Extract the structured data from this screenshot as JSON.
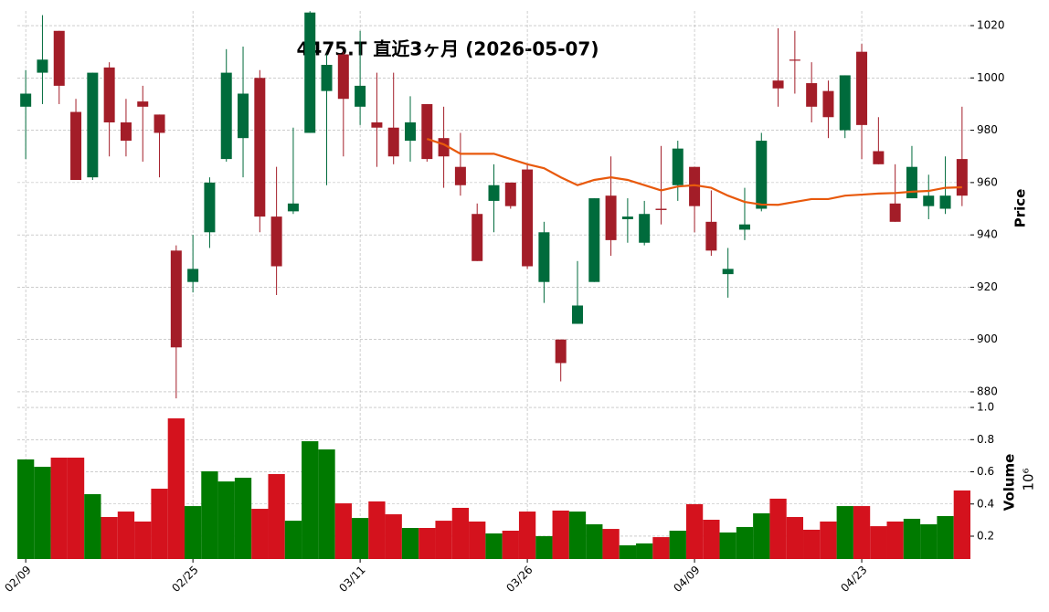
{
  "chart_data": {
    "type": "candlestick",
    "title": "4475.T  直近3ヶ月  (2026-05-07)",
    "ylabel": "Price",
    "categories": [
      "02/09",
      null,
      null,
      null,
      null,
      null,
      null,
      null,
      null,
      null,
      "02/25",
      null,
      null,
      null,
      null,
      null,
      null,
      null,
      null,
      null,
      "03/11",
      null,
      null,
      null,
      null,
      null,
      null,
      null,
      null,
      null,
      "03/26",
      null,
      null,
      null,
      null,
      null,
      null,
      null,
      null,
      null,
      "04/09",
      null,
      null,
      null,
      null,
      null,
      null,
      null,
      null,
      null,
      "04/23",
      null,
      null,
      null,
      null,
      null,
      null
    ],
    "open": [
      989,
      1002,
      1018,
      987,
      962,
      1004,
      983,
      991,
      986,
      934,
      922,
      941,
      969,
      977,
      1000,
      947,
      949,
      979,
      995,
      1009,
      989,
      983,
      981,
      976,
      990,
      977,
      966,
      948,
      953,
      960,
      965,
      922,
      900,
      906,
      922,
      955,
      946,
      937,
      950,
      959,
      966,
      945,
      925,
      942,
      950,
      999,
      1007,
      998,
      995,
      980,
      1010,
      972,
      952,
      954,
      951,
      950,
      969
    ],
    "high": [
      1003,
      1024,
      1018,
      992,
      1002,
      1006,
      992,
      997,
      986,
      936,
      940,
      962,
      1011,
      1012,
      1003,
      966,
      981,
      1025.5,
      1009,
      1010,
      1018,
      1002,
      1002,
      993,
      990,
      989,
      979,
      952,
      967,
      960,
      967,
      945,
      900,
      930,
      954,
      970,
      954,
      953,
      974,
      976,
      966,
      957,
      935,
      958,
      979,
      1019,
      1018,
      1006,
      999,
      1001,
      1013,
      985,
      967,
      974,
      963,
      970,
      989
    ],
    "low": [
      969,
      990,
      990,
      961,
      961,
      970,
      970,
      968,
      962,
      877.5,
      918,
      935,
      968,
      962,
      941,
      917,
      948,
      979,
      959,
      970,
      982,
      966,
      967,
      968,
      968,
      958,
      955,
      930,
      941,
      950,
      927,
      914,
      884,
      906,
      922,
      932,
      937,
      936,
      944,
      953,
      941,
      932,
      916,
      938,
      949,
      989,
      994,
      983,
      977,
      977,
      969,
      967,
      945,
      954,
      946,
      948,
      951
    ],
    "close": [
      994,
      1007,
      997,
      961,
      1002,
      983,
      976,
      989,
      979,
      897,
      927,
      960,
      1002,
      994,
      947,
      928,
      952,
      1025,
      1005,
      992,
      997,
      981,
      970,
      983,
      969,
      970,
      959,
      930,
      959,
      951,
      928,
      941,
      891,
      913,
      954,
      938,
      947,
      948,
      949.5,
      973,
      951,
      934,
      927,
      944,
      976,
      996,
      1006.8,
      989,
      985,
      1001,
      982,
      967,
      945,
      966,
      955,
      955,
      955
    ],
    "up_color": "#006b3c",
    "down_color": "#a31d28",
    "ylim": [
      877.2,
      1025.6
    ],
    "yticks": [
      880,
      900,
      920,
      940,
      960,
      980,
      1000,
      1020
    ],
    "grid": true,
    "moving_average": {
      "color": "#e8590c",
      "values": [
        null,
        null,
        null,
        null,
        null,
        null,
        null,
        null,
        null,
        null,
        null,
        null,
        null,
        null,
        null,
        null,
        null,
        null,
        null,
        null,
        null,
        null,
        null,
        null,
        976.7,
        974.6,
        971,
        971,
        971,
        969,
        967,
        965.5,
        962,
        959,
        961,
        962,
        961,
        959,
        957,
        958.5,
        959,
        958,
        955,
        952.6,
        951.6,
        951.5,
        952.6,
        953.7,
        953.7,
        955,
        955.4,
        955.8,
        956,
        956.5,
        956.8,
        958,
        958.2
      ]
    },
    "volume": {
      "ylabel": "Volume",
      "exponent": "10⁶",
      "up_color": "#007a00",
      "down_color": "#d4121d",
      "values": [
        0.677,
        0.631,
        0.688,
        0.688,
        0.461,
        0.319,
        0.353,
        0.291,
        0.495,
        0.932,
        0.387,
        0.603,
        0.54,
        0.563,
        0.37,
        0.586,
        0.296,
        0.79,
        0.739,
        0.404,
        0.313,
        0.416,
        0.336,
        0.251,
        0.251,
        0.296,
        0.376,
        0.291,
        0.217,
        0.234,
        0.353,
        0.2,
        0.359,
        0.353,
        0.274,
        0.245,
        0.143,
        0.155,
        0.194,
        0.234,
        0.399,
        0.302,
        0.223,
        0.257,
        0.342,
        0.433,
        0.319,
        0.24,
        0.291,
        0.387,
        0.387,
        0.262,
        0.291,
        0.308,
        0.274,
        0.325,
        0.484
      ],
      "ylim": [
        0.058,
        1.023
      ],
      "yticks": [
        0.2,
        0.4,
        0.6,
        0.8,
        {
          "value": 1,
          "label": "1.0"
        }
      ]
    }
  }
}
